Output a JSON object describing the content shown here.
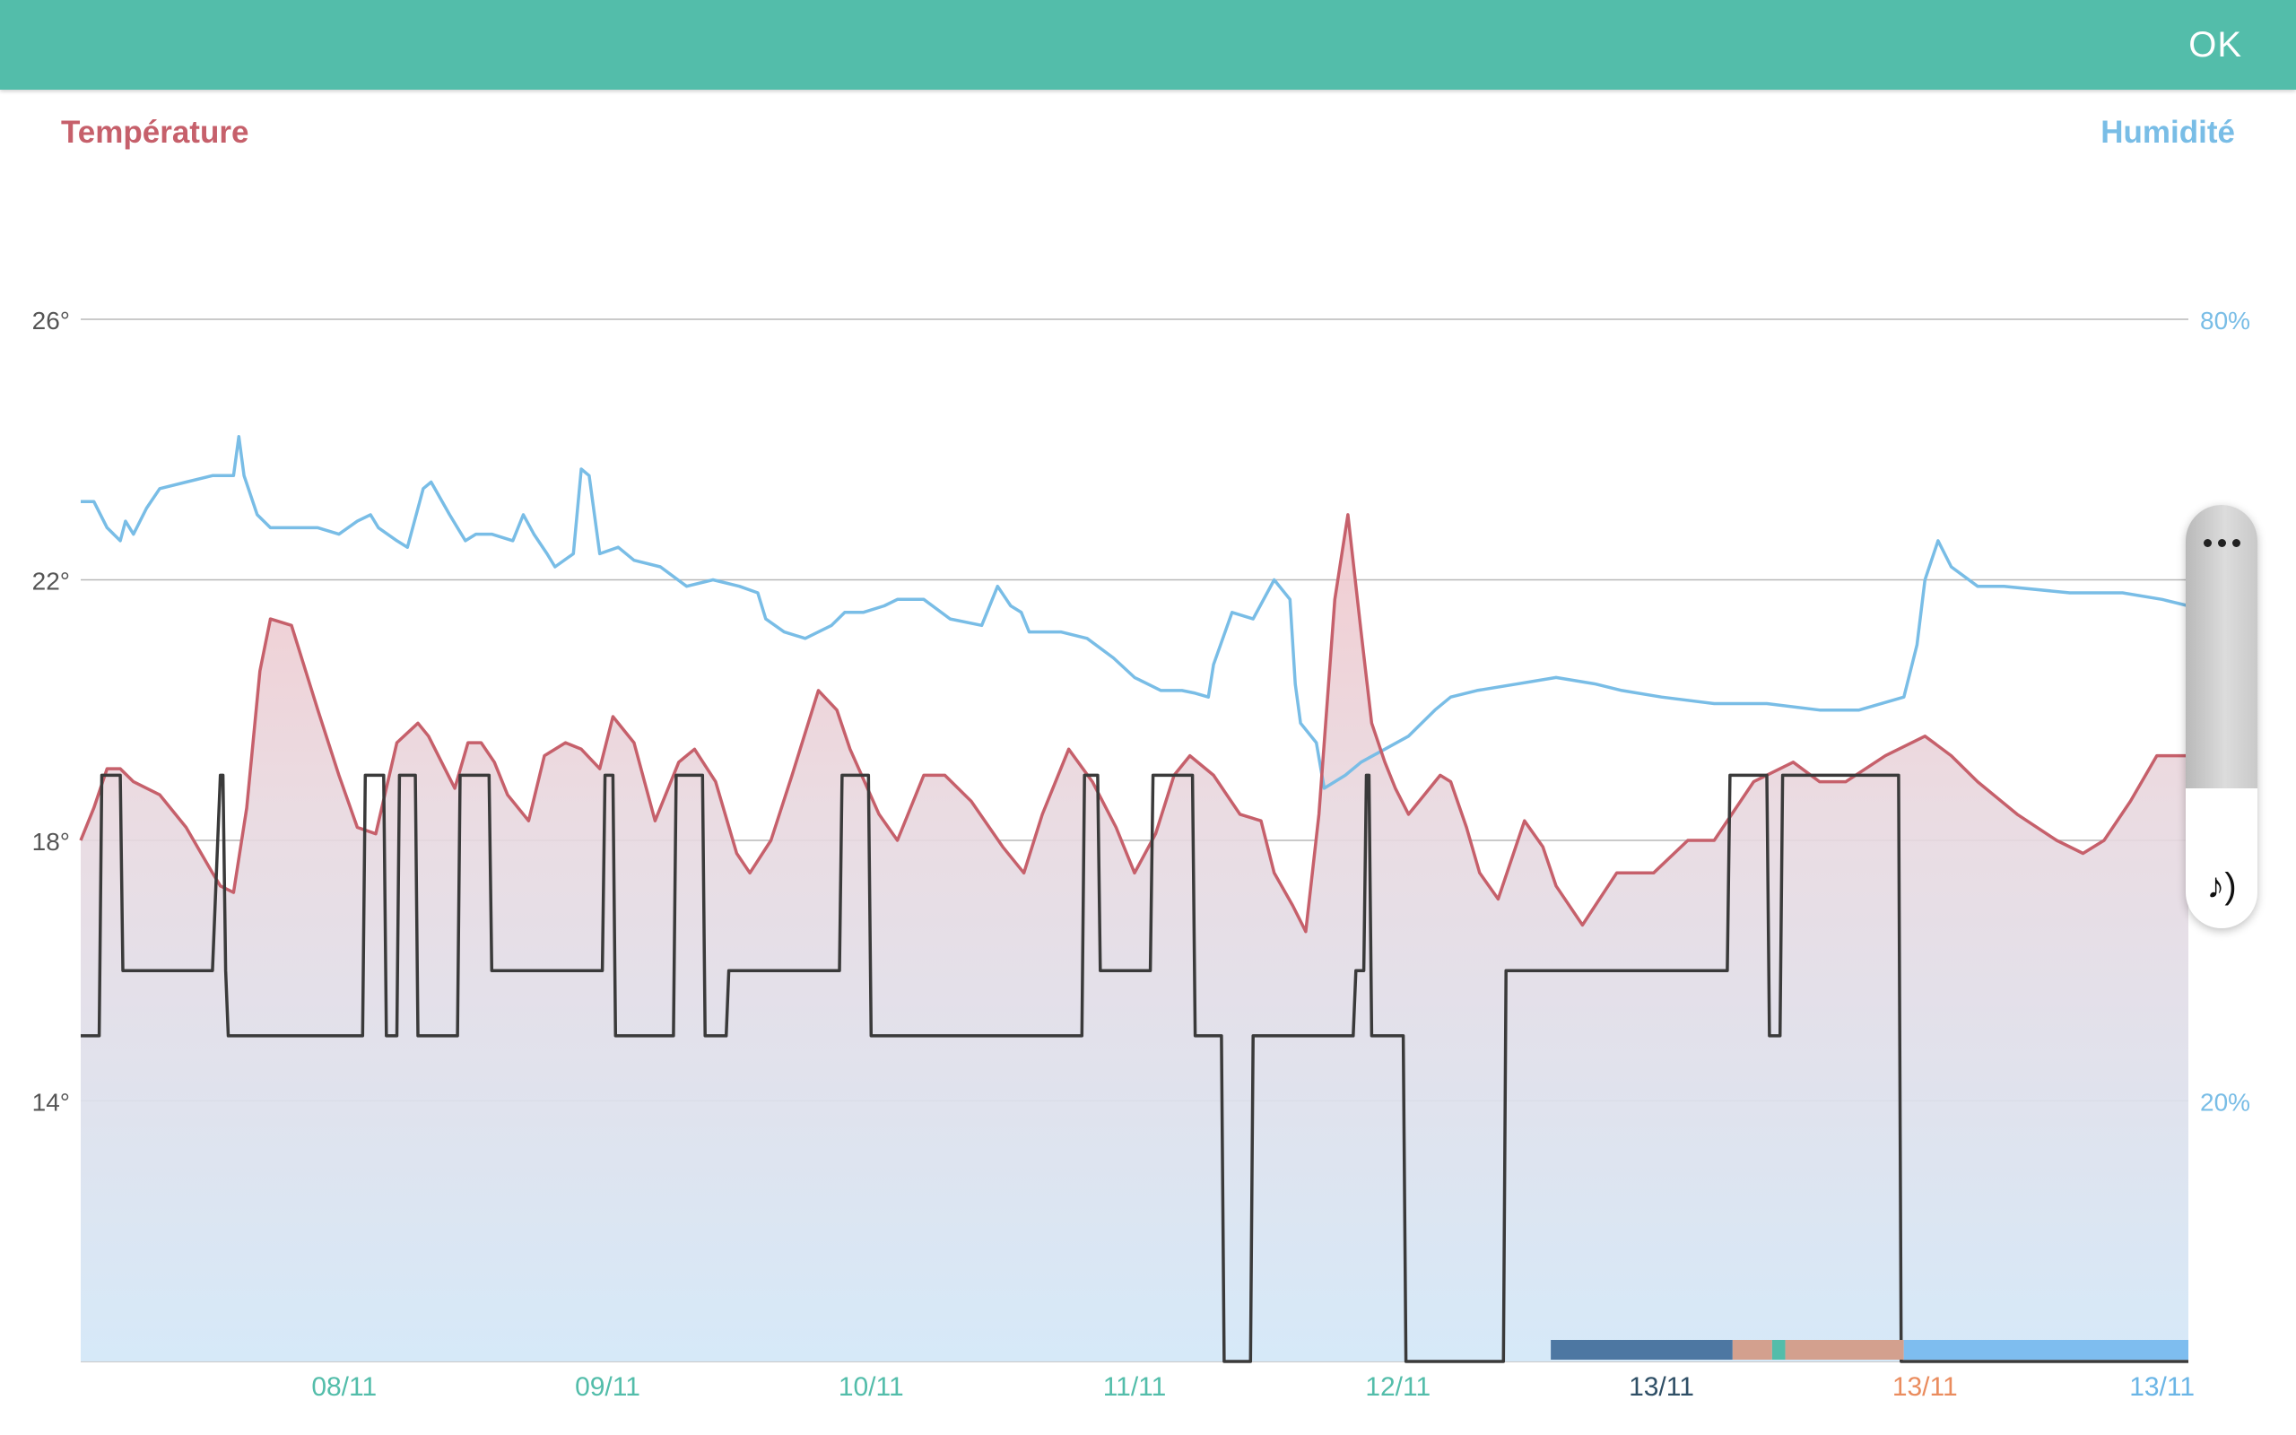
{
  "header": {
    "ok_label": "OK",
    "color": "#53bdaa"
  },
  "legend": {
    "temperature": "Température",
    "humidity": "Humidité"
  },
  "side_panel": {
    "more_icon": "more-horizontal-icon",
    "sound_icon": "sound-note-icon"
  },
  "chart_data": {
    "type": "line",
    "title": "",
    "x_range": [
      0,
      8
    ],
    "x_ticks": [
      {
        "x": 1,
        "label": "08/11",
        "color": "#53bdaa"
      },
      {
        "x": 2,
        "label": "09/11",
        "color": "#53bdaa"
      },
      {
        "x": 3,
        "label": "10/11",
        "color": "#53bdaa"
      },
      {
        "x": 4,
        "label": "11/11",
        "color": "#53bdaa"
      },
      {
        "x": 5,
        "label": "12/11",
        "color": "#53bdaa"
      },
      {
        "x": 6,
        "label": "13/11",
        "color": "#2f4f66"
      },
      {
        "x": 7,
        "label": "13/11",
        "color": "#ea8c5e"
      },
      {
        "x": 7.9,
        "label": "13/11",
        "color": "#6ab5e6"
      }
    ],
    "y_left": {
      "ticks": [
        14,
        18,
        22,
        26
      ],
      "labels": [
        "14°",
        "18°",
        "22°",
        "26°"
      ],
      "range": [
        10,
        29.8
      ]
    },
    "y_right": {
      "ticks": [
        20,
        80
      ],
      "labels": [
        "20%",
        "80%"
      ]
    },
    "grid": true,
    "colors": {
      "temperature": "#c6606b",
      "humidity": "#79bde6",
      "setpoint": "#3a3a3a"
    },
    "series": [
      {
        "key": "temperature",
        "x": [
          0,
          0.05,
          0.1,
          0.15,
          0.2,
          0.3,
          0.4,
          0.5,
          0.53,
          0.58,
          0.63,
          0.68,
          0.72,
          0.8,
          0.9,
          0.98,
          1.05,
          1.12,
          1.2,
          1.28,
          1.32,
          1.37,
          1.42,
          1.47,
          1.52,
          1.57,
          1.62,
          1.7,
          1.76,
          1.84,
          1.9,
          1.97,
          2.02,
          2.1,
          2.18,
          2.27,
          2.33,
          2.41,
          2.49,
          2.54,
          2.62,
          2.7,
          2.8,
          2.87,
          2.92,
          3.03,
          3.1,
          3.2,
          3.28,
          3.38,
          3.5,
          3.58,
          3.65,
          3.75,
          3.84,
          3.93,
          4.0,
          4.08,
          4.15,
          4.21,
          4.3,
          4.4,
          4.48,
          4.53,
          4.6,
          4.65,
          4.7,
          4.76,
          4.81,
          4.86,
          4.9,
          4.95,
          4.99,
          5.04,
          5.08,
          5.16,
          5.2,
          5.26,
          5.31,
          5.38,
          5.48,
          5.55,
          5.6,
          5.7,
          5.83,
          5.97,
          6.1,
          6.2,
          6.35,
          6.5,
          6.6,
          6.7,
          6.85,
          7.0,
          7.1,
          7.2,
          7.35,
          7.5,
          7.6,
          7.68,
          7.78,
          7.88,
          8.0
        ],
        "y": [
          18.0,
          18.5,
          19.1,
          19.1,
          18.9,
          18.7,
          18.2,
          17.5,
          17.3,
          17.2,
          18.5,
          20.6,
          21.4,
          21.3,
          20.0,
          19.0,
          18.2,
          18.1,
          19.5,
          19.8,
          19.6,
          19.2,
          18.8,
          19.5,
          19.5,
          19.2,
          18.7,
          18.3,
          19.3,
          19.5,
          19.4,
          19.1,
          19.9,
          19.5,
          18.3,
          19.2,
          19.4,
          18.9,
          17.8,
          17.5,
          18.0,
          19.0,
          20.3,
          20.0,
          19.4,
          18.4,
          18.0,
          19.0,
          19.0,
          18.6,
          17.9,
          17.5,
          18.4,
          19.4,
          18.9,
          18.2,
          17.5,
          18.1,
          19.0,
          19.3,
          19.0,
          18.4,
          18.3,
          17.5,
          17.0,
          16.6,
          18.4,
          21.7,
          23.0,
          21.2,
          19.8,
          19.2,
          18.8,
          18.4,
          18.6,
          19.0,
          18.9,
          18.2,
          17.5,
          17.1,
          18.3,
          17.9,
          17.3,
          16.7,
          17.5,
          17.5,
          18.0,
          18.0,
          18.9,
          19.2,
          18.9,
          18.9,
          19.3,
          19.6,
          19.3,
          18.9,
          18.4,
          18.0,
          17.8,
          18.0,
          18.6,
          19.3,
          19.3
        ]
      },
      {
        "key": "humidity",
        "x": [
          0,
          0.05,
          0.1,
          0.15,
          0.17,
          0.2,
          0.25,
          0.3,
          0.4,
          0.5,
          0.58,
          0.6,
          0.62,
          0.67,
          0.72,
          0.78,
          0.9,
          0.98,
          1.05,
          1.1,
          1.13,
          1.2,
          1.24,
          1.3,
          1.33,
          1.4,
          1.46,
          1.5,
          1.56,
          1.64,
          1.68,
          1.72,
          1.77,
          1.8,
          1.87,
          1.9,
          1.93,
          1.97,
          2.04,
          2.1,
          2.2,
          2.3,
          2.4,
          2.5,
          2.57,
          2.6,
          2.67,
          2.75,
          2.85,
          2.9,
          2.97,
          3.05,
          3.1,
          3.2,
          3.3,
          3.42,
          3.48,
          3.53,
          3.57,
          3.6,
          3.65,
          3.72,
          3.82,
          3.92,
          4.0,
          4.1,
          4.18,
          4.23,
          4.28,
          4.3,
          4.37,
          4.45,
          4.53,
          4.59,
          4.61,
          4.63,
          4.69,
          4.72,
          4.8,
          4.86,
          4.95,
          5.04,
          5.14,
          5.2,
          5.3,
          5.45,
          5.6,
          5.75,
          5.85,
          6.0,
          6.2,
          6.4,
          6.6,
          6.75,
          6.92,
          6.97,
          7.0,
          7.05,
          7.1,
          7.2,
          7.3,
          7.55,
          7.75,
          7.9,
          8.0
        ],
        "y": [
          66.0,
          66.0,
          64.0,
          63.0,
          64.5,
          63.5,
          65.5,
          67.0,
          67.5,
          68.0,
          68.0,
          71.0,
          68.0,
          65.0,
          64.0,
          64.0,
          64.0,
          63.5,
          64.5,
          65.0,
          64.0,
          63.0,
          62.5,
          67.0,
          67.5,
          65.0,
          63.0,
          63.5,
          63.5,
          63.0,
          65.0,
          63.5,
          62.0,
          61.0,
          62.0,
          68.5,
          68.0,
          62.0,
          62.5,
          61.5,
          61.0,
          59.5,
          60.0,
          59.5,
          59.0,
          57.0,
          56.0,
          55.5,
          56.5,
          57.5,
          57.5,
          58.0,
          58.5,
          58.5,
          57.0,
          56.5,
          59.5,
          58.0,
          57.5,
          56.0,
          56.0,
          56.0,
          55.5,
          54.0,
          52.5,
          51.5,
          51.5,
          51.3,
          51.0,
          53.5,
          57.5,
          57.0,
          60.0,
          58.5,
          52.0,
          49.0,
          47.5,
          44.0,
          45.0,
          46.0,
          47.0,
          48.0,
          50.0,
          51.0,
          51.5,
          52.0,
          52.5,
          52.0,
          51.5,
          51.0,
          50.5,
          50.5,
          50.0,
          50.0,
          51.0,
          55.0,
          60.0,
          63.0,
          61.0,
          59.5,
          59.5,
          59.0,
          59.0,
          58.5,
          58.0
        ]
      },
      {
        "key": "setpoint",
        "x": [
          0,
          0.07,
          0.08,
          0.15,
          0.16,
          0.5,
          0.53,
          0.54,
          0.55,
          0.56,
          0.57,
          0.58,
          0.6,
          1.02,
          1.03,
          1.07,
          1.08,
          1.15,
          1.16,
          1.2,
          1.21,
          1.27,
          1.28,
          1.43,
          1.44,
          1.55,
          1.56,
          1.98,
          1.99,
          2.02,
          2.03,
          2.25,
          2.26,
          2.34,
          2.35,
          2.36,
          2.37,
          2.45,
          2.46,
          2.88,
          2.89,
          2.99,
          3.0,
          3.38,
          3.39,
          3.4,
          3.41,
          3.45,
          3.46,
          3.8,
          3.81,
          3.86,
          3.87,
          4.06,
          4.07,
          4.22,
          4.23,
          4.33,
          4.34,
          4.44,
          4.45,
          4.83,
          4.84,
          4.87,
          4.88,
          4.89,
          4.9,
          4.91,
          4.92,
          5.02,
          5.03,
          5.4,
          5.41,
          5.53,
          5.54,
          6.25,
          6.26,
          6.4,
          6.41,
          6.45,
          6.46,
          6.9,
          6.91,
          8.0
        ],
        "y": [
          15.0,
          15.0,
          19.0,
          19.0,
          16.0,
          16.0,
          19.0,
          19.0,
          16.0,
          15.0,
          15.0,
          15.0,
          15.0,
          15.0,
          15.0,
          15.0,
          19.0,
          19.0,
          15.0,
          15.0,
          19.0,
          19.0,
          15.0,
          15.0,
          19.0,
          19.0,
          16.0,
          16.0,
          19.0,
          19.0,
          15.0,
          15.0,
          19.0,
          19.0,
          19.0,
          19.0,
          15.0,
          15.0,
          16.0,
          16.0,
          19.0,
          19.0,
          15.0,
          15.0,
          15.0,
          15.0,
          15.0,
          15.0,
          15.0,
          15.0,
          19.0,
          19.0,
          16.0,
          16.0,
          19.0,
          19.0,
          15.0,
          15.0,
          10.0,
          10.0,
          15.0,
          15.0,
          16.0,
          16.0,
          19.0,
          19.0,
          15.0,
          15.0,
          15.0,
          15.0,
          10.0,
          10.0,
          16.0,
          16.0,
          16.0,
          16.0,
          19.0,
          19.0,
          15.0,
          15.0,
          19.0,
          19.0,
          10.0,
          10.0
        ]
      }
    ],
    "timeline_band": [
      {
        "from": 5.58,
        "to": 6.27,
        "color": "#4d77a2"
      },
      {
        "from": 6.27,
        "to": 6.42,
        "color": "#d3a08e"
      },
      {
        "from": 6.42,
        "to": 6.47,
        "color": "#53bdaa"
      },
      {
        "from": 6.47,
        "to": 6.92,
        "color": "#d3a08e"
      },
      {
        "from": 6.92,
        "to": 8.0,
        "color": "#7ebdef"
      }
    ]
  }
}
